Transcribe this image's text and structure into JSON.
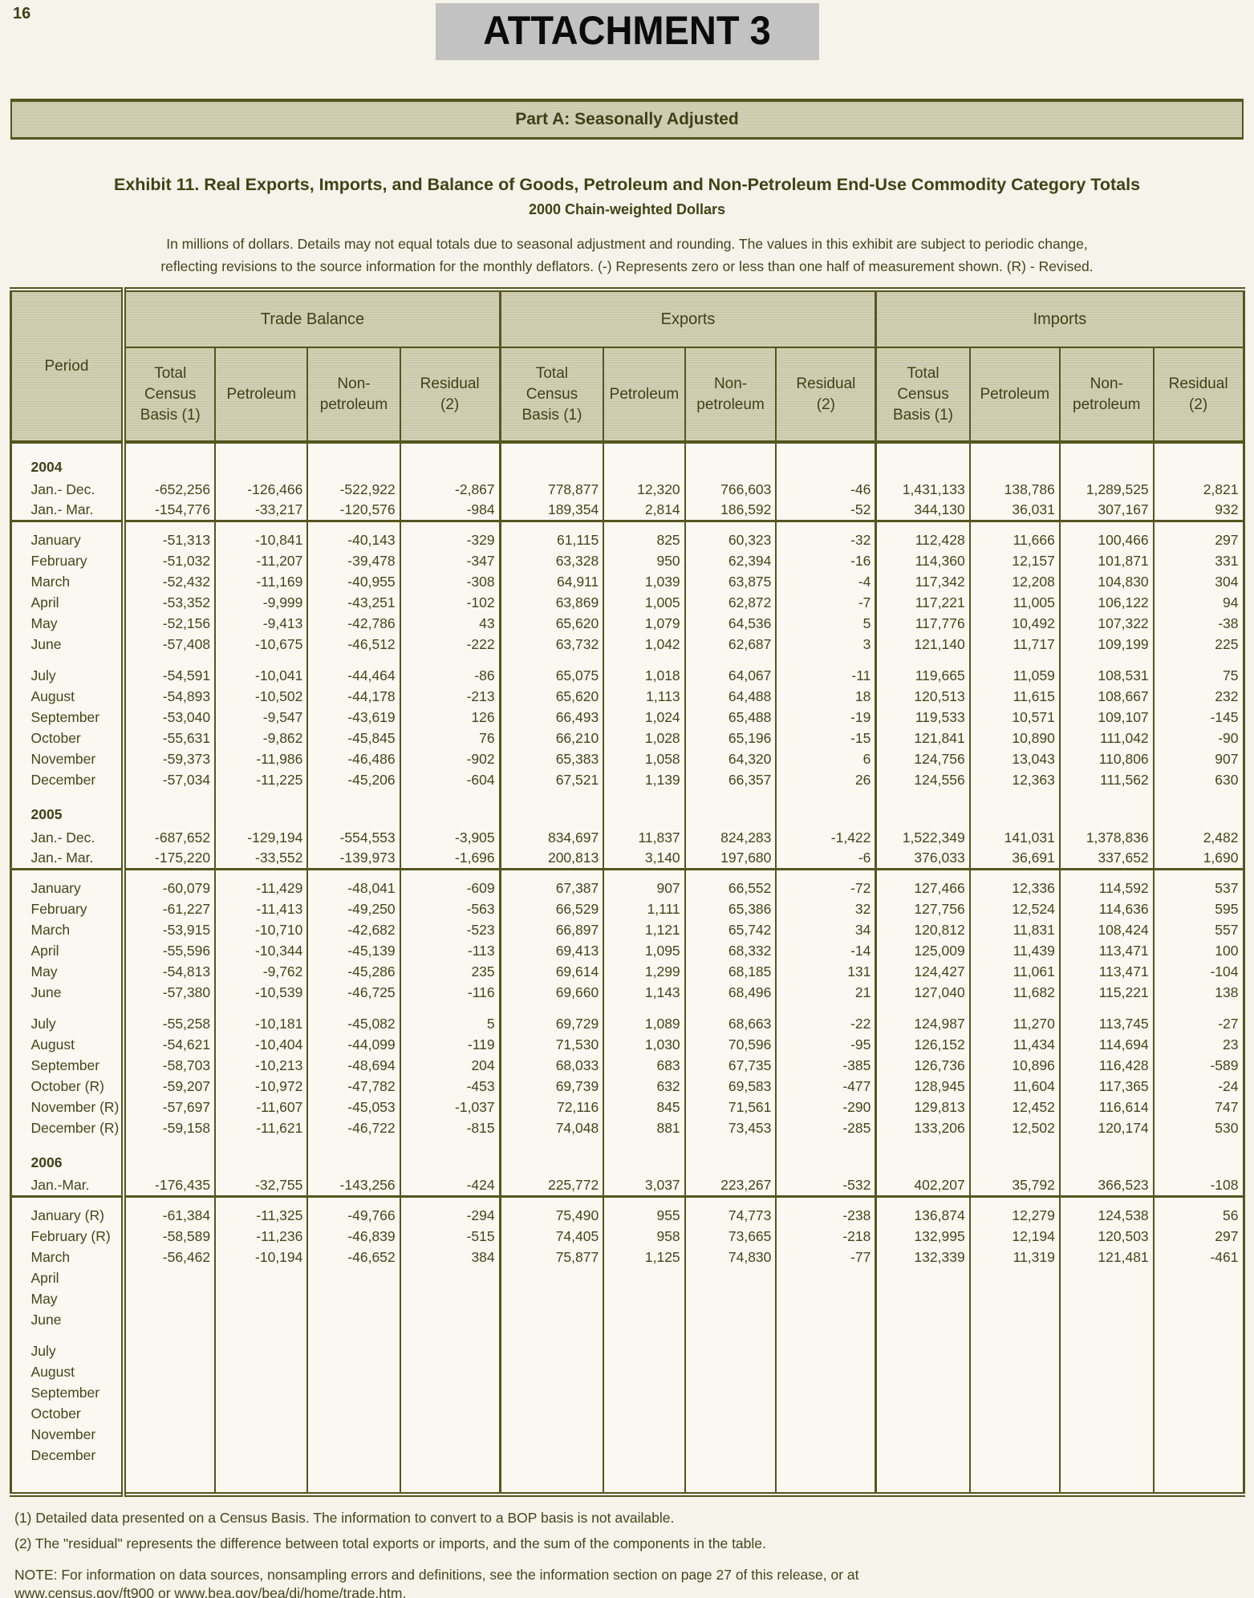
{
  "page": {
    "number": "16",
    "attachment_title": "ATTACHMENT 3",
    "part_banner": "Part A: Seasonally Adjusted",
    "exhibit_title": "Exhibit 11.  Real Exports, Imports, and Balance of Goods, Petroleum and Non-Petroleum End-Use Commodity Category Totals",
    "exhibit_subtitle": "2000 Chain-weighted Dollars",
    "note_line1": "In millions of dollars.  Details may not equal totals due to seasonal adjustment and rounding.  The values in this exhibit are subject to periodic change,",
    "note_line2": "reflecting revisions to the source information for the monthly deflators.  (-)  Represents zero or less than one half of measurement shown.  (R) - Revised."
  },
  "table": {
    "period_header": "Period",
    "groups": [
      "Trade Balance",
      "Exports",
      "Imports"
    ],
    "sub_headers": [
      "Total\nCensus\nBasis (1)",
      "Petroleum",
      "Non-\npetroleum",
      "Residual\n(2)"
    ],
    "col_widths_pct": [
      9.2,
      7.4,
      7.5,
      7.5,
      8.1,
      8.4,
      6.6,
      7.4,
      8.1,
      7.6,
      7.3,
      7.6,
      7.3
    ],
    "rows": [
      {
        "label": "2004",
        "type": "year"
      },
      {
        "label": "Jan.- Dec.",
        "type": "summary",
        "values": [
          "-652,256",
          "-126,466",
          "-522,922",
          "-2,867",
          "778,877",
          "12,320",
          "766,603",
          "-46",
          "1,431,133",
          "138,786",
          "1,289,525",
          "2,821"
        ]
      },
      {
        "label": "Jan.- Mar.",
        "type": "summary",
        "rule": true,
        "values": [
          "-154,776",
          "-33,217",
          "-120,576",
          "-984",
          "189,354",
          "2,814",
          "186,592",
          "-52",
          "344,130",
          "36,031",
          "307,167",
          "932"
        ]
      },
      {
        "type": "spacer"
      },
      {
        "label": "January",
        "type": "month",
        "values": [
          "-51,313",
          "-10,841",
          "-40,143",
          "-329",
          "61,115",
          "825",
          "60,323",
          "-32",
          "112,428",
          "11,666",
          "100,466",
          "297"
        ]
      },
      {
        "label": "February",
        "type": "month",
        "values": [
          "-51,032",
          "-11,207",
          "-39,478",
          "-347",
          "63,328",
          "950",
          "62,394",
          "-16",
          "114,360",
          "12,157",
          "101,871",
          "331"
        ]
      },
      {
        "label": "March",
        "type": "month",
        "values": [
          "-52,432",
          "-11,169",
          "-40,955",
          "-308",
          "64,911",
          "1,039",
          "63,875",
          "-4",
          "117,342",
          "12,208",
          "104,830",
          "304"
        ]
      },
      {
        "label": "April",
        "type": "month",
        "values": [
          "-53,352",
          "-9,999",
          "-43,251",
          "-102",
          "63,869",
          "1,005",
          "62,872",
          "-7",
          "117,221",
          "11,005",
          "106,122",
          "94"
        ]
      },
      {
        "label": "May",
        "type": "month",
        "values": [
          "-52,156",
          "-9,413",
          "-42,786",
          "43",
          "65,620",
          "1,079",
          "64,536",
          "5",
          "117,776",
          "10,492",
          "107,322",
          "-38"
        ]
      },
      {
        "label": "June",
        "type": "month",
        "values": [
          "-57,408",
          "-10,675",
          "-46,512",
          "-222",
          "63,732",
          "1,042",
          "62,687",
          "3",
          "121,140",
          "11,717",
          "109,199",
          "225"
        ]
      },
      {
        "type": "gap"
      },
      {
        "label": "July",
        "type": "month",
        "values": [
          "-54,591",
          "-10,041",
          "-44,464",
          "-86",
          "65,075",
          "1,018",
          "64,067",
          "-11",
          "119,665",
          "11,059",
          "108,531",
          "75"
        ]
      },
      {
        "label": "August",
        "type": "month",
        "values": [
          "-54,893",
          "-10,502",
          "-44,178",
          "-213",
          "65,620",
          "1,113",
          "64,488",
          "18",
          "120,513",
          "11,615",
          "108,667",
          "232"
        ]
      },
      {
        "label": "September",
        "type": "month",
        "values": [
          "-53,040",
          "-9,547",
          "-43,619",
          "126",
          "66,493",
          "1,024",
          "65,488",
          "-19",
          "119,533",
          "10,571",
          "109,107",
          "-145"
        ]
      },
      {
        "label": "October",
        "type": "month",
        "values": [
          "-55,631",
          "-9,862",
          "-45,845",
          "76",
          "66,210",
          "1,028",
          "65,196",
          "-15",
          "121,841",
          "10,890",
          "111,042",
          "-90"
        ]
      },
      {
        "label": "November",
        "type": "month",
        "values": [
          "-59,373",
          "-11,986",
          "-46,486",
          "-902",
          "65,383",
          "1,058",
          "64,320",
          "6",
          "124,756",
          "13,043",
          "110,806",
          "907"
        ]
      },
      {
        "label": "December",
        "type": "month",
        "values": [
          "-57,034",
          "-11,225",
          "-45,206",
          "-604",
          "67,521",
          "1,139",
          "66,357",
          "26",
          "124,556",
          "12,363",
          "111,562",
          "630"
        ]
      },
      {
        "label": "2005",
        "type": "year"
      },
      {
        "label": "Jan.- Dec.",
        "type": "summary",
        "values": [
          "-687,652",
          "-129,194",
          "-554,553",
          "-3,905",
          "834,697",
          "11,837",
          "824,283",
          "-1,422",
          "1,522,349",
          "141,031",
          "1,378,836",
          "2,482"
        ]
      },
      {
        "label": "Jan.- Mar.",
        "type": "summary",
        "rule": true,
        "values": [
          "-175,220",
          "-33,552",
          "-139,973",
          "-1,696",
          "200,813",
          "3,140",
          "197,680",
          "-6",
          "376,033",
          "36,691",
          "337,652",
          "1,690"
        ]
      },
      {
        "type": "spacer"
      },
      {
        "label": "January",
        "type": "month",
        "values": [
          "-60,079",
          "-11,429",
          "-48,041",
          "-609",
          "67,387",
          "907",
          "66,552",
          "-72",
          "127,466",
          "12,336",
          "114,592",
          "537"
        ]
      },
      {
        "label": "February",
        "type": "month",
        "values": [
          "-61,227",
          "-11,413",
          "-49,250",
          "-563",
          "66,529",
          "1,111",
          "65,386",
          "32",
          "127,756",
          "12,524",
          "114,636",
          "595"
        ]
      },
      {
        "label": "March",
        "type": "month",
        "values": [
          "-53,915",
          "-10,710",
          "-42,682",
          "-523",
          "66,897",
          "1,121",
          "65,742",
          "34",
          "120,812",
          "11,831",
          "108,424",
          "557"
        ]
      },
      {
        "label": "April",
        "type": "month",
        "values": [
          "-55,596",
          "-10,344",
          "-45,139",
          "-113",
          "69,413",
          "1,095",
          "68,332",
          "-14",
          "125,009",
          "11,439",
          "113,471",
          "100"
        ]
      },
      {
        "label": "May",
        "type": "month",
        "values": [
          "-54,813",
          "-9,762",
          "-45,286",
          "235",
          "69,614",
          "1,299",
          "68,185",
          "131",
          "124,427",
          "11,061",
          "113,471",
          "-104"
        ]
      },
      {
        "label": "June",
        "type": "month",
        "values": [
          "-57,380",
          "-10,539",
          "-46,725",
          "-116",
          "69,660",
          "1,143",
          "68,496",
          "21",
          "127,040",
          "11,682",
          "115,221",
          "138"
        ]
      },
      {
        "type": "gap"
      },
      {
        "label": "July",
        "type": "month",
        "values": [
          "-55,258",
          "-10,181",
          "-45,082",
          "5",
          "69,729",
          "1,089",
          "68,663",
          "-22",
          "124,987",
          "11,270",
          "113,745",
          "-27"
        ]
      },
      {
        "label": "August",
        "type": "month",
        "values": [
          "-54,621",
          "-10,404",
          "-44,099",
          "-119",
          "71,530",
          "1,030",
          "70,596",
          "-95",
          "126,152",
          "11,434",
          "114,694",
          "23"
        ]
      },
      {
        "label": "September",
        "type": "month",
        "values": [
          "-58,703",
          "-10,213",
          "-48,694",
          "204",
          "68,033",
          "683",
          "67,735",
          "-385",
          "126,736",
          "10,896",
          "116,428",
          "-589"
        ]
      },
      {
        "label": "October (R)",
        "type": "month",
        "values": [
          "-59,207",
          "-10,972",
          "-47,782",
          "-453",
          "69,739",
          "632",
          "69,583",
          "-477",
          "128,945",
          "11,604",
          "117,365",
          "-24"
        ]
      },
      {
        "label": "November (R)",
        "type": "month",
        "values": [
          "-57,697",
          "-11,607",
          "-45,053",
          "-1,037",
          "72,116",
          "845",
          "71,561",
          "-290",
          "129,813",
          "12,452",
          "116,614",
          "747"
        ]
      },
      {
        "label": "December (R)",
        "type": "month",
        "values": [
          "-59,158",
          "-11,621",
          "-46,722",
          "-815",
          "74,048",
          "881",
          "73,453",
          "-285",
          "133,206",
          "12,502",
          "120,174",
          "530"
        ]
      },
      {
        "label": "2006",
        "type": "year"
      },
      {
        "label": "Jan.-Mar.",
        "type": "summary",
        "rule": true,
        "values": [
          "-176,435",
          "-32,755",
          "-143,256",
          "-424",
          "225,772",
          "3,037",
          "223,267",
          "-532",
          "402,207",
          "35,792",
          "366,523",
          "-108"
        ]
      },
      {
        "type": "spacer"
      },
      {
        "label": "January (R)",
        "type": "month",
        "values": [
          "-61,384",
          "-11,325",
          "-49,766",
          "-294",
          "75,490",
          "955",
          "74,773",
          "-238",
          "136,874",
          "12,279",
          "124,538",
          "56"
        ]
      },
      {
        "label": "February (R)",
        "type": "month",
        "values": [
          "-58,589",
          "-11,236",
          "-46,839",
          "-515",
          "74,405",
          "958",
          "73,665",
          "-218",
          "132,995",
          "12,194",
          "120,503",
          "297"
        ]
      },
      {
        "label": "March",
        "type": "month",
        "values": [
          "-56,462",
          "-10,194",
          "-46,652",
          "384",
          "75,877",
          "1,125",
          "74,830",
          "-77",
          "132,339",
          "11,319",
          "121,481",
          "-461"
        ]
      },
      {
        "label": "April",
        "type": "month",
        "values": []
      },
      {
        "label": "May",
        "type": "month",
        "values": []
      },
      {
        "label": "June",
        "type": "month",
        "values": []
      },
      {
        "type": "gap"
      },
      {
        "label": "July",
        "type": "month",
        "values": []
      },
      {
        "label": "August",
        "type": "month",
        "values": []
      },
      {
        "label": "September",
        "type": "month",
        "values": []
      },
      {
        "label": "October",
        "type": "month",
        "values": []
      },
      {
        "label": "November",
        "type": "month",
        "values": []
      },
      {
        "label": "December",
        "type": "month",
        "values": []
      },
      {
        "type": "endgap"
      }
    ]
  },
  "footnotes": {
    "fn1": "(1) Detailed data presented on a Census Basis.  The information to convert to a BOP basis is not available.",
    "fn2": "(2) The \"residual\" represents the difference between total exports or imports, and the sum of the components in the table.",
    "note_line": "NOTE:  For information on data sources, nonsampling errors and definitions, see the information section on page 27 of this release, or at",
    "url1": "www.census.gov/ft900",
    "conj": " or ",
    "url2": "www.bea.gov/bea/di/home/trade.htm",
    "period": "."
  }
}
